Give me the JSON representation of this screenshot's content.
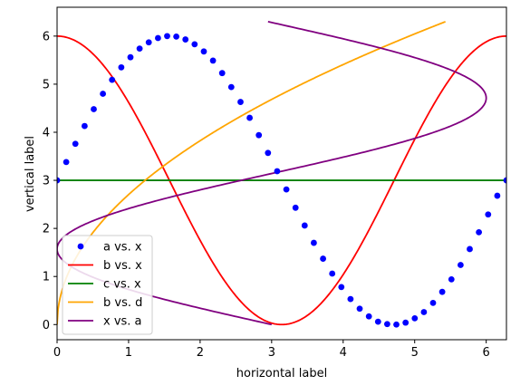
{
  "chart_data": {
    "type": "line",
    "title": "",
    "xlabel": "horizontal label",
    "ylabel": "vertical label",
    "xlim": [
      0,
      6.283
    ],
    "ylim": [
      -0.315,
      6.6
    ],
    "xticks": [
      0,
      1,
      2,
      3,
      4,
      5,
      6
    ],
    "yticks": [
      0,
      1,
      2,
      3,
      4,
      5,
      6
    ],
    "grid": false,
    "legend_position": "lower-left",
    "series": [
      {
        "name": "a vs. x",
        "kind": "scatter",
        "color": "#0000ff",
        "x": [
          0.0,
          0.128,
          0.256,
          0.385,
          0.513,
          0.641,
          0.769,
          0.898,
          1.026,
          1.154,
          1.282,
          1.411,
          1.539,
          1.667,
          1.795,
          1.923,
          2.052,
          2.18,
          2.308,
          2.436,
          2.565,
          2.693,
          2.821,
          2.949,
          3.077,
          3.206,
          3.334,
          3.462,
          3.59,
          3.719,
          3.847,
          3.975,
          4.103,
          4.231,
          4.36,
          4.488,
          4.616,
          4.744,
          4.873,
          5.001,
          5.129,
          5.257,
          5.385,
          5.514,
          5.642,
          5.77,
          5.898,
          6.027,
          6.155,
          6.283
        ],
        "y": [
          3.0,
          3.38,
          3.76,
          4.13,
          4.48,
          4.8,
          5.09,
          5.35,
          5.56,
          5.74,
          5.87,
          5.96,
          6.0,
          5.99,
          5.93,
          5.83,
          5.68,
          5.49,
          5.23,
          4.94,
          4.63,
          4.3,
          3.94,
          3.57,
          3.19,
          2.81,
          2.43,
          2.06,
          1.7,
          1.37,
          1.06,
          0.78,
          0.53,
          0.33,
          0.17,
          0.06,
          0.01,
          0.0,
          0.04,
          0.13,
          0.26,
          0.45,
          0.68,
          0.94,
          1.24,
          1.57,
          1.92,
          2.29,
          2.68,
          3.0
        ]
      },
      {
        "name": "b vs. x",
        "kind": "line",
        "color": "#ff0000",
        "fn": "3*cos(x)+3"
      },
      {
        "name": "c vs. x",
        "kind": "line",
        "color": "#008000",
        "fn": "3"
      },
      {
        "name": "b vs. d",
        "kind": "line",
        "color": "#ffa500",
        "fn": "d=sqrt(x)*sqrt(2*pi) ... plotted as x=b?",
        "note": ""
      },
      {
        "name": "x vs. a",
        "kind": "line",
        "color": "#800080",
        "fn": "x=3*sin(a)+3 parametric"
      }
    ]
  }
}
